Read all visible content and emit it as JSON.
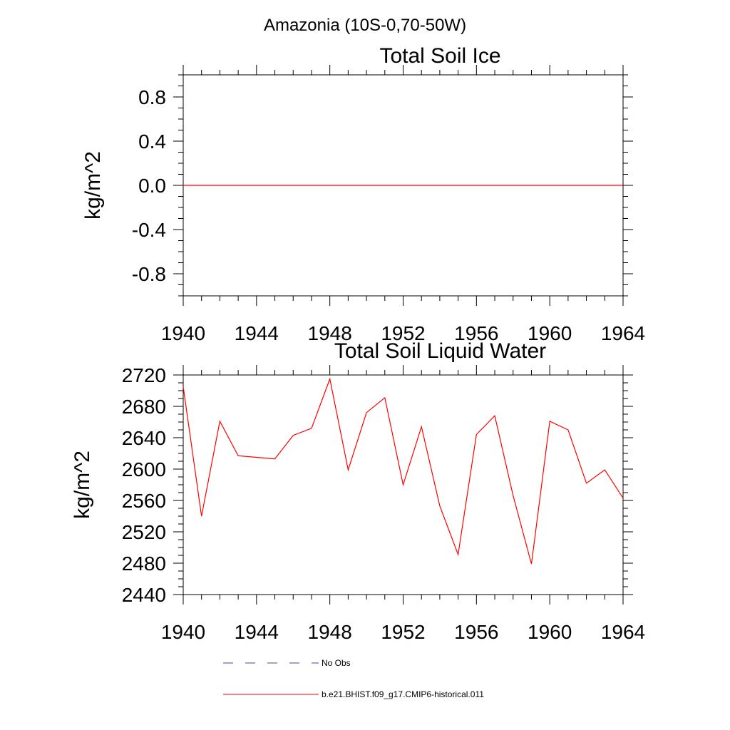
{
  "page_title": "Amazonia (10S-0,70-50W)",
  "chart_data": [
    {
      "type": "line",
      "title": "Total Soil Ice",
      "xlabel": "",
      "ylabel": "kg/m^2",
      "xlim": [
        1940,
        1964
      ],
      "ylim": [
        -1.0,
        1.0
      ],
      "x_ticks": [
        1940,
        1944,
        1948,
        1952,
        1956,
        1960,
        1964
      ],
      "y_ticks": [
        0.8,
        0.4,
        0.0,
        -0.4,
        -0.8
      ],
      "y_tick_labels": [
        "0.8",
        "0.4",
        "0.0",
        "-0.4",
        "-0.8"
      ],
      "grid": false,
      "series": [
        {
          "color": "#ff0000",
          "x": [
            1940,
            1964
          ],
          "y": [
            0.0,
            0.0
          ]
        }
      ]
    },
    {
      "type": "line",
      "title": "Total Soil Liquid Water",
      "xlabel": "",
      "ylabel": "kg/m^2",
      "xlim": [
        1940,
        1964
      ],
      "ylim": [
        2440,
        2720
      ],
      "x_ticks": [
        1940,
        1944,
        1948,
        1952,
        1956,
        1960,
        1964
      ],
      "y_ticks": [
        2720,
        2680,
        2640,
        2600,
        2560,
        2520,
        2480,
        2440
      ],
      "y_tick_labels": [
        "2720",
        "2680",
        "2640",
        "2600",
        "2560",
        "2520",
        "2480",
        "2440"
      ],
      "grid": false,
      "series": [
        {
          "color": "#ff0000",
          "x": [
            1940,
            1941,
            1942,
            1943,
            1944,
            1945,
            1946,
            1947,
            1948,
            1949,
            1950,
            1951,
            1952,
            1953,
            1954,
            1955,
            1956,
            1957,
            1958,
            1959,
            1960,
            1961,
            1962,
            1963,
            1964
          ],
          "y": [
            2705,
            2540,
            2661,
            2617,
            2615,
            2613,
            2643,
            2652,
            2715,
            2599,
            2672,
            2691,
            2580,
            2654,
            2553,
            2491,
            2644,
            2668,
            2566,
            2479,
            2661,
            2650,
            2582,
            2599,
            2563
          ]
        }
      ]
    }
  ],
  "legend": {
    "placement": "bottom",
    "items": [
      {
        "label": "No Obs",
        "color": "#4a4a8a",
        "style": "dashed"
      },
      {
        "label": "b.e21.BHIST.f09_g17.CMIP6-historical.011",
        "color": "#ff0000",
        "style": "solid"
      }
    ]
  }
}
